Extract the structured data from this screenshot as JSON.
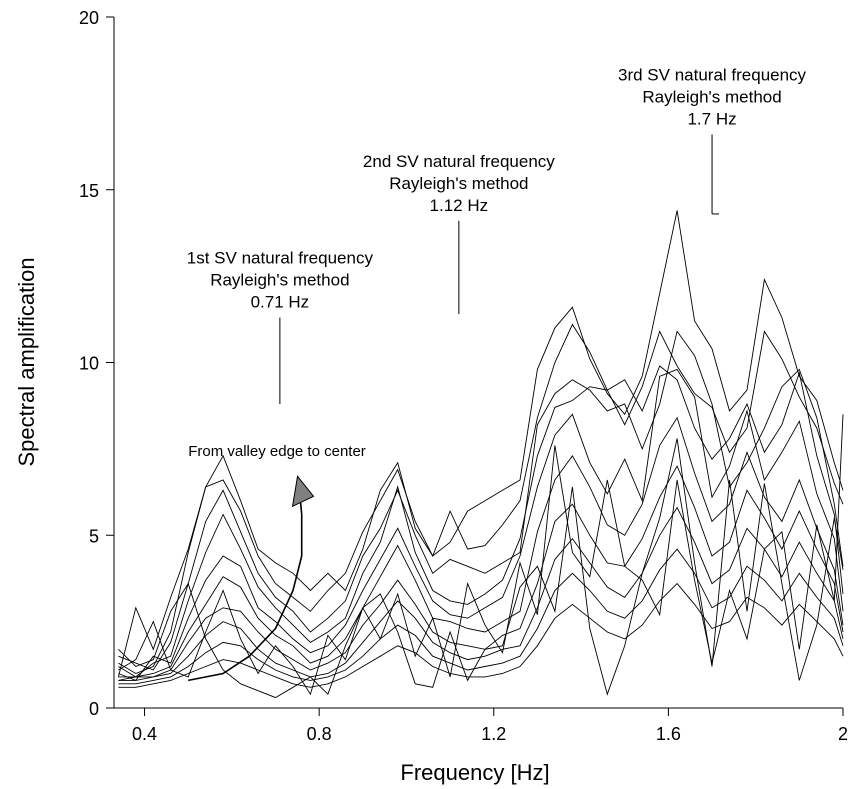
{
  "chart_data": {
    "type": "line",
    "title": "",
    "xlabel": "Frequency [Hz]",
    "ylabel": "Spectral amplification",
    "xlim": [
      0.33,
      2.0
    ],
    "ylim": [
      0,
      20
    ],
    "xticks": [
      0.4,
      0.8,
      1.2,
      1.6,
      2.0
    ],
    "xtick_labels": [
      "0.4",
      "0.8",
      "1.2",
      "1.6",
      "2"
    ],
    "yticks": [
      0,
      5,
      10,
      15,
      20
    ],
    "ytick_labels": [
      "0",
      "5",
      "10",
      "15",
      "20"
    ],
    "grid": false,
    "x": [
      0.34,
      0.38,
      0.42,
      0.46,
      0.5,
      0.54,
      0.58,
      0.62,
      0.66,
      0.7,
      0.74,
      0.78,
      0.82,
      0.86,
      0.9,
      0.94,
      0.98,
      1.02,
      1.06,
      1.1,
      1.14,
      1.18,
      1.22,
      1.26,
      1.3,
      1.34,
      1.38,
      1.42,
      1.46,
      1.5,
      1.54,
      1.58,
      1.62,
      1.66,
      1.7,
      1.74,
      1.78,
      1.82,
      1.86,
      1.9,
      1.94,
      1.98,
      2.0
    ],
    "series": [
      {
        "values": [
          1.3,
          1.0,
          1.2,
          2.2,
          4.5,
          6.4,
          7.3,
          6.0,
          4.6,
          4.2,
          3.9,
          3.4,
          3.9,
          3.4,
          4.6,
          6.3,
          7.1,
          5.2,
          4.4,
          4.8,
          5.7,
          6.0,
          6.3,
          6.6,
          9.8,
          11.0,
          11.6,
          10.1,
          9.1,
          8.5,
          9.6,
          12.0,
          14.4,
          11.2,
          10.4,
          8.6,
          9.2,
          12.4,
          11.3,
          9.6,
          8.9,
          7.1,
          6.3
        ]
      },
      {
        "values": [
          0.9,
          2.9,
          1.7,
          3.2,
          4.6,
          6.4,
          6.6,
          5.7,
          4.4,
          3.6,
          3.2,
          2.8,
          3.4,
          3.9,
          5.1,
          6.0,
          6.9,
          5.4,
          4.4,
          5.7,
          4.6,
          4.7,
          5.3,
          6.0,
          8.4,
          10.0,
          11.1,
          10.3,
          9.2,
          8.2,
          9.3,
          10.9,
          9.9,
          9.1,
          8.7,
          7.4,
          8.1,
          10.9,
          10.1,
          9.0,
          8.1,
          6.5,
          5.9
        ]
      },
      {
        "values": [
          1.5,
          1.3,
          1.1,
          1.9,
          3.6,
          5.4,
          6.3,
          5.1,
          3.9,
          3.2,
          2.8,
          2.2,
          2.6,
          3.1,
          4.4,
          5.2,
          6.3,
          5.0,
          3.9,
          4.3,
          4.1,
          3.9,
          4.2,
          4.5,
          8.2,
          9.1,
          9.5,
          9.2,
          8.6,
          8.8,
          7.5,
          8.8,
          10.9,
          10.2,
          8.8,
          6.4,
          7.1,
          8.1,
          9.3,
          9.8,
          8.4,
          5.9,
          4.1
        ]
      },
      {
        "values": [
          1.2,
          0.9,
          1.3,
          1.5,
          3.1,
          4.5,
          5.6,
          4.6,
          3.5,
          2.9,
          2.4,
          1.9,
          2.2,
          2.6,
          3.9,
          4.8,
          6.4,
          4.5,
          3.4,
          3.1,
          3.0,
          3.3,
          3.7,
          4.9,
          7.3,
          8.7,
          8.9,
          9.3,
          9.2,
          9.5,
          8.6,
          9.9,
          9.5,
          8.1,
          7.2,
          7.8,
          8.8,
          7.4,
          8.2,
          9.7,
          7.3,
          5.6,
          3.3
        ]
      },
      {
        "values": [
          1.0,
          0.8,
          1.5,
          1.3,
          2.6,
          3.7,
          4.4,
          4.1,
          2.9,
          2.5,
          2.0,
          1.6,
          1.8,
          2.4,
          3.4,
          4.3,
          5.2,
          4.1,
          3.1,
          2.7,
          2.6,
          2.9,
          3.2,
          4.4,
          6.4,
          7.9,
          8.5,
          7.1,
          6.2,
          7.2,
          6.0,
          9.6,
          9.8,
          9.0,
          6.1,
          7.0,
          8.6,
          6.6,
          7.4,
          8.3,
          6.2,
          4.9,
          2.8
        ]
      },
      {
        "values": [
          0.9,
          0.9,
          1.0,
          1.2,
          2.2,
          3.0,
          3.8,
          3.5,
          2.6,
          2.1,
          1.8,
          1.3,
          1.5,
          2.0,
          2.9,
          3.8,
          4.7,
          3.7,
          2.6,
          2.5,
          2.3,
          2.2,
          2.5,
          2.8,
          5.1,
          6.6,
          7.3,
          6.4,
          5.3,
          5.0,
          5.9,
          7.6,
          8.4,
          6.8,
          5.4,
          5.9,
          7.4,
          6.1,
          5.4,
          6.6,
          5.2,
          4.0,
          2.4
        ]
      },
      {
        "values": [
          0.8,
          0.9,
          0.9,
          1.1,
          1.9,
          2.6,
          2.9,
          2.8,
          2.2,
          1.7,
          1.4,
          1.1,
          1.3,
          1.6,
          2.4,
          3.0,
          3.7,
          3.0,
          2.2,
          1.9,
          1.8,
          1.7,
          2.1,
          2.3,
          3.6,
          5.4,
          5.9,
          5.0,
          4.2,
          4.1,
          4.9,
          6.1,
          7.0,
          5.8,
          4.4,
          4.8,
          6.3,
          5.5,
          4.6,
          5.7,
          4.6,
          3.6,
          2.2
        ]
      },
      {
        "values": [
          0.8,
          0.8,
          0.9,
          1.0,
          1.5,
          2.1,
          2.5,
          2.3,
          1.7,
          1.3,
          1.1,
          0.9,
          1.0,
          1.3,
          1.9,
          2.5,
          3.1,
          2.6,
          1.9,
          1.6,
          1.4,
          1.5,
          1.7,
          1.8,
          2.9,
          4.3,
          4.9,
          4.2,
          3.5,
          3.2,
          3.9,
          5.0,
          5.8,
          4.8,
          3.6,
          4.0,
          5.2,
          4.6,
          3.8,
          4.8,
          3.9,
          3.1,
          2.0
        ]
      },
      {
        "values": [
          0.7,
          0.7,
          0.8,
          0.9,
          1.2,
          1.6,
          1.9,
          1.8,
          1.4,
          1.1,
          0.9,
          0.8,
          0.9,
          1.1,
          1.5,
          2.0,
          2.4,
          2.1,
          1.5,
          1.3,
          1.1,
          1.2,
          1.3,
          1.5,
          2.3,
          3.4,
          3.9,
          3.4,
          2.8,
          2.6,
          3.1,
          4.0,
          4.6,
          3.9,
          2.9,
          3.2,
          4.1,
          3.7,
          3.1,
          3.9,
          3.2,
          2.6,
          1.8
        ]
      },
      {
        "values": [
          0.6,
          0.6,
          0.7,
          0.8,
          1.0,
          1.2,
          1.4,
          1.3,
          1.1,
          0.9,
          0.7,
          0.6,
          0.7,
          0.9,
          1.2,
          1.5,
          1.8,
          1.6,
          1.2,
          1.0,
          0.9,
          0.9,
          1.0,
          1.2,
          1.8,
          2.6,
          3.0,
          2.6,
          2.2,
          2.0,
          2.4,
          3.1,
          3.6,
          3.0,
          2.3,
          2.5,
          3.2,
          2.9,
          2.4,
          3.0,
          2.5,
          2.0,
          1.5
        ]
      },
      {
        "values": [
          1.7,
          1.2,
          1.4,
          2.8,
          3.6,
          2.0,
          1.1,
          0.7,
          0.5,
          0.3,
          0.6,
          0.9,
          0.4,
          1.8,
          2.9,
          3.3,
          2.2,
          0.7,
          0.6,
          2.2,
          0.8,
          1.7,
          1.8,
          3.5,
          4.1,
          2.8,
          6.4,
          2.3,
          0.4,
          1.8,
          3.9,
          5.5,
          7.8,
          4.2,
          1.2,
          6.6,
          2.8,
          6.5,
          3.6,
          0.8,
          2.4,
          5.5,
          4.0
        ]
      },
      {
        "values": [
          1.1,
          1.4,
          2.5,
          1.1,
          0.9,
          2.2,
          3.4,
          2.0,
          1.0,
          1.8,
          1.2,
          0.4,
          2.1,
          1.4,
          2.9,
          2.0,
          3.3,
          1.5,
          2.6,
          0.9,
          3.6,
          2.4,
          1.6,
          4.2,
          2.7,
          7.6,
          4.5,
          3.8,
          6.6,
          4.1,
          3.7,
          2.7,
          6.6,
          3.7,
          1.3,
          3.4,
          2.0,
          4.6,
          5.1,
          1.7,
          5.3,
          3.1,
          8.5
        ]
      }
    ],
    "trend_path": {
      "x": [
        0.5,
        0.58,
        0.64,
        0.7,
        0.74,
        0.76,
        0.76,
        0.755
      ],
      "y": [
        0.8,
        1.0,
        1.5,
        2.3,
        3.4,
        4.4,
        5.6,
        6.3
      ]
    },
    "annotations": [
      {
        "lines": [
          "1st SV natural frequency",
          "Rayleigh's method",
          "0.71 Hz"
        ],
        "x": 0.71,
        "marker_y": [
          8.8,
          11.3
        ]
      },
      {
        "lines": [
          "2nd SV natural frequency",
          "Rayleigh's method",
          "1.12 Hz"
        ],
        "x": 1.12,
        "marker_y": [
          11.4,
          14.1
        ]
      },
      {
        "lines": [
          "3rd SV natural frequency",
          "Rayleigh's method",
          "1.7 Hz"
        ],
        "x": 1.7,
        "marker_y": [
          14.3,
          16.6
        ]
      },
      {
        "lines": [
          "From valley edge to center"
        ],
        "x": 0.75
      }
    ]
  }
}
